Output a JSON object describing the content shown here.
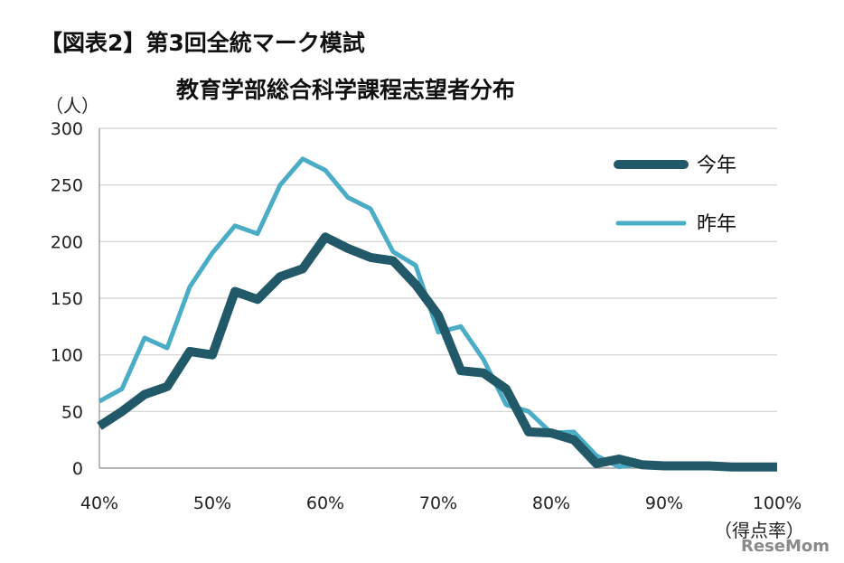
{
  "titles": {
    "line1": "【図表2】第3回全統マーク模試",
    "line2": "教育学部総合科学課程志望者分布"
  },
  "watermark": "ReseMom",
  "chart_data": {
    "type": "line",
    "ylabel": "（人）",
    "xlabel": "（得点率）",
    "ylim": [
      0,
      300
    ],
    "xlim": [
      40,
      100
    ],
    "y_ticks": [
      "0",
      "50",
      "100",
      "150",
      "200",
      "250",
      "300"
    ],
    "x_ticks": [
      "40%",
      "50%",
      "60%",
      "70%",
      "80%",
      "90%",
      "100%"
    ],
    "grid": "horizontal",
    "legend_position": "top-right",
    "x": [
      40,
      42,
      44,
      46,
      48,
      50,
      52,
      54,
      56,
      58,
      60,
      62,
      64,
      66,
      68,
      70,
      72,
      74,
      76,
      78,
      80,
      82,
      84,
      86,
      88,
      90,
      92,
      94,
      96,
      98,
      100
    ],
    "series": [
      {
        "name": "今年",
        "color": "#215968",
        "values": [
          37,
          50,
          65,
          72,
          103,
          100,
          156,
          149,
          169,
          176,
          204,
          194,
          186,
          183,
          162,
          135,
          86,
          84,
          70,
          32,
          31,
          25,
          4,
          8,
          3,
          2,
          2,
          2,
          1,
          1,
          1
        ]
      },
      {
        "name": "昨年",
        "color": "#4bacc6",
        "values": [
          59,
          70,
          115,
          106,
          160,
          190,
          214,
          207,
          250,
          273,
          263,
          239,
          229,
          191,
          179,
          120,
          125,
          96,
          56,
          50,
          31,
          32,
          11,
          1,
          4,
          1,
          0,
          0,
          0,
          0,
          0
        ]
      }
    ]
  }
}
